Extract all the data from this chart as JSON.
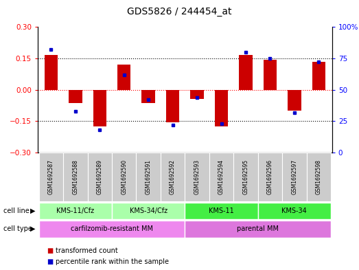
{
  "title": "GDS5826 / 244454_at",
  "samples": [
    "GSM1692587",
    "GSM1692588",
    "GSM1692589",
    "GSM1692590",
    "GSM1692591",
    "GSM1692592",
    "GSM1692593",
    "GSM1692594",
    "GSM1692595",
    "GSM1692596",
    "GSM1692597",
    "GSM1692598"
  ],
  "transformed_count": [
    0.165,
    -0.065,
    -0.175,
    0.12,
    -0.065,
    -0.155,
    -0.045,
    -0.175,
    0.165,
    0.145,
    -0.1,
    0.135
  ],
  "percentile_rank": [
    82,
    33,
    18,
    62,
    42,
    22,
    44,
    23,
    80,
    75,
    32,
    72
  ],
  "ylim_left": [
    -0.3,
    0.3
  ],
  "ylim_right": [
    0,
    100
  ],
  "yticks_left": [
    -0.3,
    -0.15,
    0,
    0.15,
    0.3
  ],
  "yticks_right": [
    0,
    25,
    50,
    75,
    100
  ],
  "hlines_dotted": [
    -0.15,
    0.15
  ],
  "hline_red_dotted": 0,
  "cell_line_groups": [
    {
      "label": "KMS-11/Cfz",
      "start": 0,
      "end": 3,
      "color": "#aaffaa"
    },
    {
      "label": "KMS-34/Cfz",
      "start": 3,
      "end": 6,
      "color": "#aaffaa"
    },
    {
      "label": "KMS-11",
      "start": 6,
      "end": 9,
      "color": "#44ee44"
    },
    {
      "label": "KMS-34",
      "start": 9,
      "end": 12,
      "color": "#44ee44"
    }
  ],
  "cell_type_groups": [
    {
      "label": "carfilzomib-resistant MM",
      "start": 0,
      "end": 6,
      "color": "#ee88ee"
    },
    {
      "label": "parental MM",
      "start": 6,
      "end": 12,
      "color": "#dd77dd"
    }
  ],
  "bar_color": "#cc0000",
  "dot_color": "#0000cc",
  "bg_color": "#ffffff",
  "label_cell_line": "cell line",
  "label_cell_type": "cell type",
  "legend_items": [
    {
      "label": "transformed count",
      "color": "#cc0000"
    },
    {
      "label": "percentile rank within the sample",
      "color": "#0000cc"
    }
  ],
  "sample_bg_color": "#cccccc",
  "title_fontsize": 10,
  "tick_fontsize": 7.5,
  "bar_width": 0.55
}
